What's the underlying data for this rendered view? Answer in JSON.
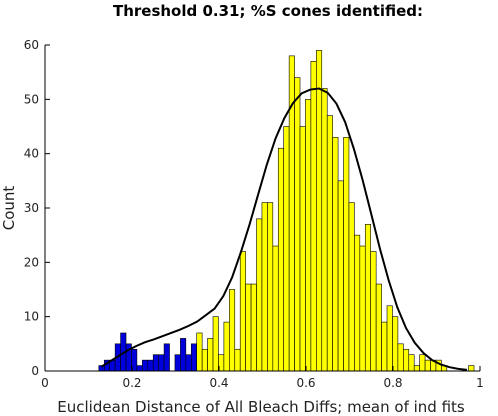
{
  "chart_data": {
    "type": "bar",
    "title": "Threshold 0.31; %S cones identified:",
    "xlabel": "Euclidean Distance of All Bleach Diffs; mean of ind fits",
    "ylabel": "Count",
    "xlim": [
      0,
      1
    ],
    "ylim": [
      0,
      60
    ],
    "xticks": [
      "0",
      "0.2",
      "0.4",
      "0.6",
      "0.8",
      "1"
    ],
    "yticks": [
      "0",
      "10",
      "20",
      "30",
      "40",
      "50",
      "60"
    ],
    "bin_width": 0.0125,
    "grid": false,
    "series": [
      {
        "color": "#0000dd",
        "x": [
          0.13,
          0.1425,
          0.155,
          0.1675,
          0.18,
          0.1925,
          0.205,
          0.2175,
          0.23,
          0.2425,
          0.255,
          0.2675,
          0.28,
          0.2925,
          0.305,
          0.3175,
          0.33,
          0.3425
        ],
        "values": [
          1,
          2,
          2,
          5,
          7,
          5,
          4,
          1,
          2,
          2,
          3,
          3,
          5,
          0,
          3,
          6,
          3,
          5
        ]
      },
      {
        "color": "#ffff00",
        "x": [
          0.355,
          0.3675,
          0.38,
          0.3925,
          0.405,
          0.4175,
          0.43,
          0.4425,
          0.455,
          0.4675,
          0.48,
          0.4925,
          0.505,
          0.5175,
          0.53,
          0.5425,
          0.555,
          0.5675,
          0.58,
          0.5925,
          0.605,
          0.6175,
          0.63,
          0.6425,
          0.655,
          0.6675,
          0.68,
          0.6925,
          0.705,
          0.7175,
          0.73,
          0.7425,
          0.755,
          0.7675,
          0.78,
          0.7925,
          0.805,
          0.8175,
          0.83,
          0.8425,
          0.855,
          0.8675,
          0.88,
          0.8925,
          0.905,
          0.9175,
          0.93,
          0.9425,
          0.955,
          0.9675,
          0.98
        ],
        "values": [
          7,
          4,
          6,
          10,
          3,
          9,
          15,
          4,
          22,
          16,
          16,
          28,
          31,
          31,
          23,
          41,
          45,
          58,
          54,
          45,
          50,
          57,
          59,
          52,
          47,
          43,
          35,
          43,
          31,
          25,
          23,
          27,
          22,
          16,
          9,
          12,
          10,
          5,
          4,
          3,
          1,
          3,
          2,
          2,
          2,
          1,
          0,
          0,
          0,
          0,
          1
        ]
      }
    ],
    "fit_curve": {
      "color": "#000000",
      "x": [
        0.13,
        0.15,
        0.17,
        0.19,
        0.21,
        0.23,
        0.25,
        0.27,
        0.29,
        0.31,
        0.33,
        0.35,
        0.37,
        0.39,
        0.41,
        0.43,
        0.45,
        0.47,
        0.49,
        0.51,
        0.53,
        0.55,
        0.57,
        0.59,
        0.61,
        0.63,
        0.65,
        0.67,
        0.69,
        0.71,
        0.73,
        0.75,
        0.77,
        0.79,
        0.81,
        0.83,
        0.85,
        0.87,
        0.89,
        0.91,
        0.93,
        0.95,
        0.97
      ],
      "y": [
        0.8,
        1.8,
        2.8,
        3.8,
        4.6,
        5.3,
        5.8,
        6.4,
        7.0,
        7.6,
        8.3,
        9.1,
        10.3,
        11.5,
        13.8,
        17.2,
        21.8,
        26.9,
        32.5,
        38.0,
        42.8,
        46.5,
        49.3,
        51.1,
        51.8,
        52.0,
        51.2,
        49.2,
        45.8,
        40.9,
        35.2,
        28.9,
        22.5,
        16.7,
        11.7,
        7.9,
        5.2,
        3.3,
        2.0,
        1.2,
        0.7,
        0.4,
        0.2
      ]
    }
  }
}
